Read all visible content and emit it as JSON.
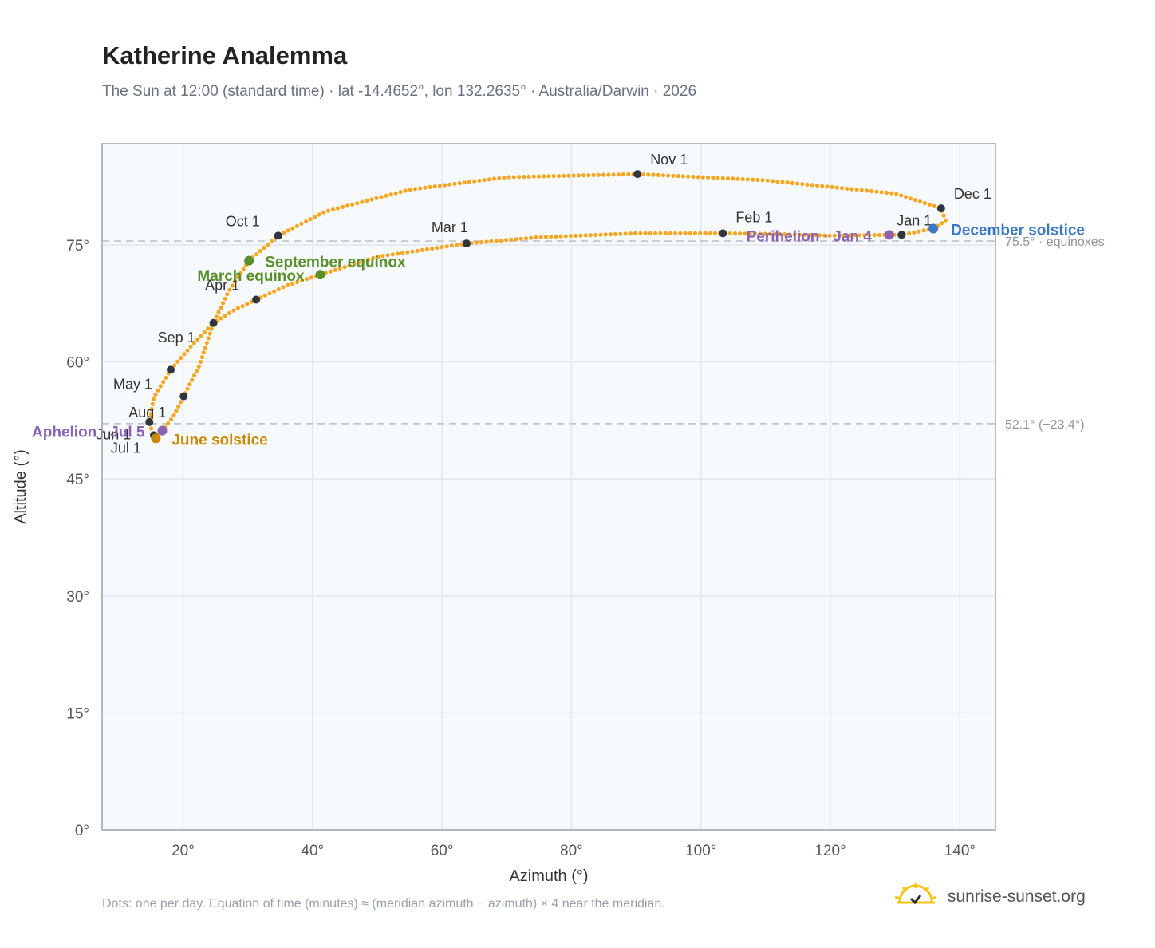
{
  "title": "Katherine Analemma",
  "subtitle": "The Sun at 12:00 (standard time) · lat -14.4652°, lon 132.2635° · Australia/Darwin · 2026",
  "footnote": "Dots: one per day. Equation of time (minutes) ≈ (meridian azimuth − azimuth) × 4 near the meridian.",
  "brand": "sunrise-sunset.org",
  "chart_data": {
    "type": "scatter",
    "xlabel": "Azimuth (°)",
    "ylabel": "Altitude (°)",
    "xlim": [
      7.5,
      145.5
    ],
    "ylim": [
      0,
      88
    ],
    "xticks": [
      20,
      40,
      60,
      80,
      100,
      120,
      140
    ],
    "yticks": [
      0,
      15,
      30,
      45,
      60,
      75
    ],
    "tick_suffix": "°",
    "grid": true,
    "colors": {
      "curve": "#f5a623",
      "month": "#2f3640",
      "equinox": "#5a8f2e",
      "june": "#c98a0b",
      "december": "#3a78c3",
      "apsis": "#8a63b5",
      "refline": "#c0c6ce"
    },
    "reference_lines": [
      {
        "y": 75.5,
        "label": "75.5° · equinoxes"
      },
      {
        "y": 52.1,
        "label": "52.1° (−23.4°)"
      }
    ],
    "path": [
      [
        129.1,
        76.3
      ],
      [
        131,
        76.3
      ],
      [
        135.9,
        77.1
      ],
      [
        137.8,
        78.1
      ],
      [
        137.1,
        79.7
      ],
      [
        130,
        81.6
      ],
      [
        110,
        83.3
      ],
      [
        90.2,
        84.1
      ],
      [
        70,
        83.7
      ],
      [
        55,
        82.1
      ],
      [
        42,
        79.3
      ],
      [
        38,
        77.6
      ],
      [
        34.7,
        76.2
      ],
      [
        30.2,
        73.0
      ],
      [
        27,
        69.0
      ],
      [
        24.7,
        65.0
      ],
      [
        21,
        61.8
      ],
      [
        18.1,
        59.0
      ],
      [
        15.5,
        55.5
      ],
      [
        14.8,
        52.2
      ],
      [
        15.5,
        50.3
      ],
      [
        16.8,
        51.2
      ],
      [
        18.5,
        53.0
      ],
      [
        20.1,
        55.6
      ],
      [
        22.5,
        59.5
      ],
      [
        24.7,
        65.0
      ],
      [
        28,
        66.7
      ],
      [
        31.3,
        68.0
      ],
      [
        36,
        69.8
      ],
      [
        41.2,
        71.2
      ],
      [
        50,
        73.5
      ],
      [
        63.8,
        75.2
      ],
      [
        75,
        76.0
      ],
      [
        90,
        76.5
      ],
      [
        103.4,
        76.5
      ],
      [
        112,
        76.4
      ],
      [
        120,
        76.2
      ],
      [
        129.1,
        76.3
      ]
    ],
    "months": [
      {
        "label": "Jan 1",
        "x": 131.0,
        "y": 76.3
      },
      {
        "label": "Feb 1",
        "x": 103.4,
        "y": 76.5
      },
      {
        "label": "Mar 1",
        "x": 63.8,
        "y": 75.2
      },
      {
        "label": "Apr 1",
        "x": 31.3,
        "y": 68.0
      },
      {
        "label": "May 1",
        "x": 18.1,
        "y": 59.0
      },
      {
        "label": "Jun 1",
        "x": 20.1,
        "y": 55.6
      },
      {
        "label": "Jul 1",
        "x": 15.5,
        "y": 50.6
      },
      {
        "label": "Aug 1",
        "x": 14.8,
        "y": 52.3
      },
      {
        "label": "Sep 1",
        "x": 24.7,
        "y": 65.0
      },
      {
        "label": "Oct 1",
        "x": 34.7,
        "y": 76.2
      },
      {
        "label": "Nov 1",
        "x": 90.2,
        "y": 84.1
      },
      {
        "label": "Dec 1",
        "x": 137.1,
        "y": 79.7
      }
    ],
    "events": [
      {
        "label": "March equinox",
        "x": 41.2,
        "y": 71.2,
        "kind": "equinox"
      },
      {
        "label": "September equinox",
        "x": 30.2,
        "y": 73.0,
        "kind": "equinox"
      },
      {
        "label": "June solstice",
        "x": 15.8,
        "y": 50.2,
        "kind": "june"
      },
      {
        "label": "December solstice",
        "x": 135.9,
        "y": 77.1,
        "kind": "december"
      },
      {
        "label": "Aphelion · Jul 5",
        "x": 16.8,
        "y": 51.2,
        "kind": "apsis"
      },
      {
        "label": "Perihelion · Jan 4",
        "x": 129.1,
        "y": 76.3,
        "kind": "apsis"
      }
    ]
  }
}
